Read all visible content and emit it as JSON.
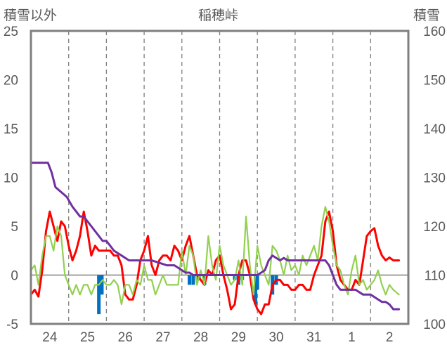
{
  "chart_data": {
    "type": "line",
    "title": "稲穂峠",
    "ylabel_left": "積雪以外",
    "ylabel_right": "積雪",
    "ylim_left": [
      -5,
      25
    ],
    "ylim_right": [
      100,
      160
    ],
    "yticks_left": [
      25,
      20,
      15,
      10,
      5,
      0,
      -5
    ],
    "yticks_right": [
      160,
      150,
      140,
      130,
      120,
      110,
      100
    ],
    "xlim": [
      0,
      10
    ],
    "categories": [
      "24",
      "25",
      "26",
      "27",
      "28",
      "29",
      "30",
      "31",
      "1",
      "2"
    ],
    "grid": "vertical-dashed",
    "zero_line": true,
    "series": [
      {
        "key": "temperature",
        "color": "#ff0000",
        "axis": "left",
        "x": [
          0,
          0.1,
          0.2,
          0.3,
          0.4,
          0.5,
          0.6,
          0.7,
          0.8,
          0.9,
          1.0,
          1.1,
          1.2,
          1.3,
          1.4,
          1.5,
          1.6,
          1.7,
          1.8,
          1.9,
          2.0,
          2.1,
          2.2,
          2.3,
          2.4,
          2.5,
          2.6,
          2.7,
          2.8,
          2.9,
          3.0,
          3.1,
          3.2,
          3.3,
          3.4,
          3.5,
          3.6,
          3.7,
          3.8,
          3.9,
          4.0,
          4.1,
          4.2,
          4.3,
          4.4,
          4.5,
          4.6,
          4.7,
          4.8,
          4.9,
          5.0,
          5.1,
          5.2,
          5.3,
          5.4,
          5.5,
          5.6,
          5.7,
          5.8,
          5.9,
          6.0,
          6.1,
          6.2,
          6.3,
          6.4,
          6.5,
          6.6,
          6.7,
          6.8,
          6.9,
          7.0,
          7.1,
          7.2,
          7.3,
          7.4,
          7.5,
          7.6,
          7.7,
          7.8,
          7.9,
          8.0,
          8.1,
          8.2,
          8.3,
          8.4,
          8.5,
          8.6,
          8.7,
          8.8,
          8.9,
          9.0,
          9.1,
          9.2,
          9.3,
          9.4,
          9.5,
          9.6,
          9.75
        ],
        "values": [
          -2.0,
          -1.5,
          -2.2,
          0.5,
          4.5,
          6.5,
          5.0,
          3.5,
          5.5,
          5.0,
          3.0,
          1.5,
          2.5,
          4.0,
          6.5,
          4.5,
          2.0,
          3.0,
          2.5,
          2.5,
          2.5,
          2.5,
          2.0,
          2.0,
          1.0,
          -2.0,
          -2.5,
          -2.5,
          -1.0,
          1.5,
          2.5,
          4.0,
          1.0,
          0.0,
          1.5,
          2.0,
          2.0,
          1.5,
          3.0,
          2.5,
          1.5,
          3.0,
          4.0,
          2.0,
          0.0,
          -0.5,
          -1.0,
          0.5,
          0.0,
          1.5,
          2.0,
          0.0,
          -1.5,
          -3.5,
          -3.0,
          0.0,
          1.5,
          1.5,
          0.0,
          -2.5,
          -3.5,
          -4.0,
          -3.0,
          -3.0,
          -1.0,
          -0.5,
          -0.5,
          -1.0,
          -1.0,
          -1.5,
          -1.5,
          -1.0,
          -1.0,
          -1.5,
          -1.5,
          0.0,
          1.0,
          2.0,
          5.5,
          6.5,
          4.5,
          1.0,
          -0.5,
          -1.0,
          -1.5,
          -1.5,
          -0.5,
          -1.0,
          1.5,
          4.0,
          4.5,
          4.8,
          3.0,
          2.0,
          1.5,
          1.8,
          1.5,
          1.5
        ]
      },
      {
        "key": "wind",
        "color": "#92d050",
        "axis": "left",
        "x": [
          0,
          0.1,
          0.2,
          0.3,
          0.4,
          0.5,
          0.6,
          0.7,
          0.8,
          0.9,
          1.0,
          1.1,
          1.2,
          1.3,
          1.4,
          1.5,
          1.6,
          1.7,
          1.8,
          1.9,
          2.0,
          2.1,
          2.2,
          2.3,
          2.4,
          2.5,
          2.6,
          2.7,
          2.8,
          2.9,
          3.0,
          3.1,
          3.2,
          3.3,
          3.4,
          3.5,
          3.6,
          3.7,
          3.8,
          3.9,
          4.0,
          4.1,
          4.2,
          4.3,
          4.4,
          4.5,
          4.6,
          4.7,
          4.8,
          4.9,
          5.0,
          5.1,
          5.2,
          5.3,
          5.4,
          5.5,
          5.6,
          5.7,
          5.8,
          5.9,
          6.0,
          6.1,
          6.2,
          6.3,
          6.4,
          6.5,
          6.6,
          6.7,
          6.8,
          6.9,
          7.0,
          7.1,
          7.2,
          7.3,
          7.4,
          7.5,
          7.6,
          7.7,
          7.8,
          7.9,
          8.0,
          8.1,
          8.2,
          8.3,
          8.4,
          8.5,
          8.6,
          8.7,
          8.8,
          8.9,
          9.0,
          9.1,
          9.2,
          9.3,
          9.4,
          9.5,
          9.6,
          9.75
        ],
        "values": [
          0.5,
          1.0,
          -1.0,
          2.0,
          4.0,
          4.0,
          2.5,
          5.0,
          4.0,
          0.0,
          -1.0,
          -2.0,
          -1.0,
          -2.0,
          -1.0,
          -1.0,
          -2.0,
          -1.0,
          -1.0,
          -0.5,
          -1.0,
          -1.0,
          -0.5,
          -1.0,
          -3.0,
          -1.0,
          -1.0,
          -2.0,
          -0.5,
          -1.0,
          1.0,
          -0.5,
          -0.5,
          -2.0,
          -1.0,
          0.0,
          -1.0,
          -1.0,
          -1.0,
          -1.0,
          2.5,
          0.0,
          3.0,
          2.0,
          -1.0,
          0.5,
          -1.0,
          4.0,
          1.0,
          -0.5,
          3.0,
          1.0,
          0.0,
          -1.0,
          -0.5,
          1.5,
          -1.0,
          6.0,
          1.0,
          -2.0,
          3.0,
          1.0,
          0.0,
          -1.0,
          3.0,
          2.5,
          1.5,
          0.0,
          2.0,
          0.5,
          1.0,
          0.0,
          2.0,
          1.0,
          2.0,
          3.0,
          1.5,
          5.0,
          7.0,
          5.5,
          3.0,
          1.0,
          0.5,
          -1.0,
          -2.0,
          0.5,
          2.0,
          -1.0,
          -0.5,
          -1.5,
          -1.0,
          -0.5,
          0.5,
          -1.0,
          -2.0,
          -1.0,
          -1.5,
          -2.0
        ]
      },
      {
        "key": "snow_depth",
        "color": "#7030a0",
        "axis": "right",
        "x": [
          0,
          0.45,
          0.55,
          0.65,
          0.8,
          0.95,
          1.1,
          1.2,
          1.3,
          1.4,
          1.5,
          1.6,
          1.7,
          1.8,
          1.9,
          2.0,
          2.1,
          2.2,
          2.4,
          2.6,
          2.8,
          3.0,
          3.2,
          3.4,
          3.6,
          3.8,
          4.0,
          4.1,
          4.2,
          4.3,
          4.4,
          4.6,
          4.8,
          5.0,
          5.2,
          5.4,
          5.6,
          5.8,
          6.0,
          6.2,
          6.3,
          6.4,
          6.5,
          6.6,
          6.7,
          6.8,
          7.0,
          7.2,
          7.4,
          7.6,
          7.8,
          7.9,
          8.0,
          8.1,
          8.2,
          8.3,
          8.4,
          8.6,
          8.8,
          9.0,
          9.2,
          9.3,
          9.4,
          9.5,
          9.6,
          9.75
        ],
        "values": [
          133,
          133,
          131,
          128,
          127,
          126,
          124,
          123,
          122,
          122,
          121,
          120,
          119,
          118,
          117,
          117,
          116,
          115,
          114,
          113,
          113,
          113,
          113,
          112.5,
          112,
          112,
          111,
          110.5,
          110.5,
          110,
          110,
          110,
          110,
          110,
          110,
          110,
          110,
          110,
          110,
          111,
          113,
          114,
          113.5,
          113,
          113.5,
          113,
          113,
          113,
          113,
          113,
          113,
          112,
          110,
          108,
          107,
          107,
          107,
          107,
          106,
          106,
          105,
          104.5,
          104.5,
          104,
          103,
          103
        ]
      },
      {
        "key": "precipitation",
        "color": "#0070c0",
        "axis": "left",
        "type": "bar",
        "x": [
          1.8,
          1.88,
          4.2,
          4.3,
          4.45,
          4.6,
          5.4,
          5.5,
          5.6,
          5.95,
          6.0,
          6.4,
          6.5
        ],
        "values": [
          -4.0,
          -2.0,
          -1.0,
          -1.0,
          -0.5,
          -1.0,
          -0.5,
          -1.0,
          -0.5,
          -3.0,
          -1.5,
          -2.0,
          -1.0
        ]
      }
    ]
  }
}
